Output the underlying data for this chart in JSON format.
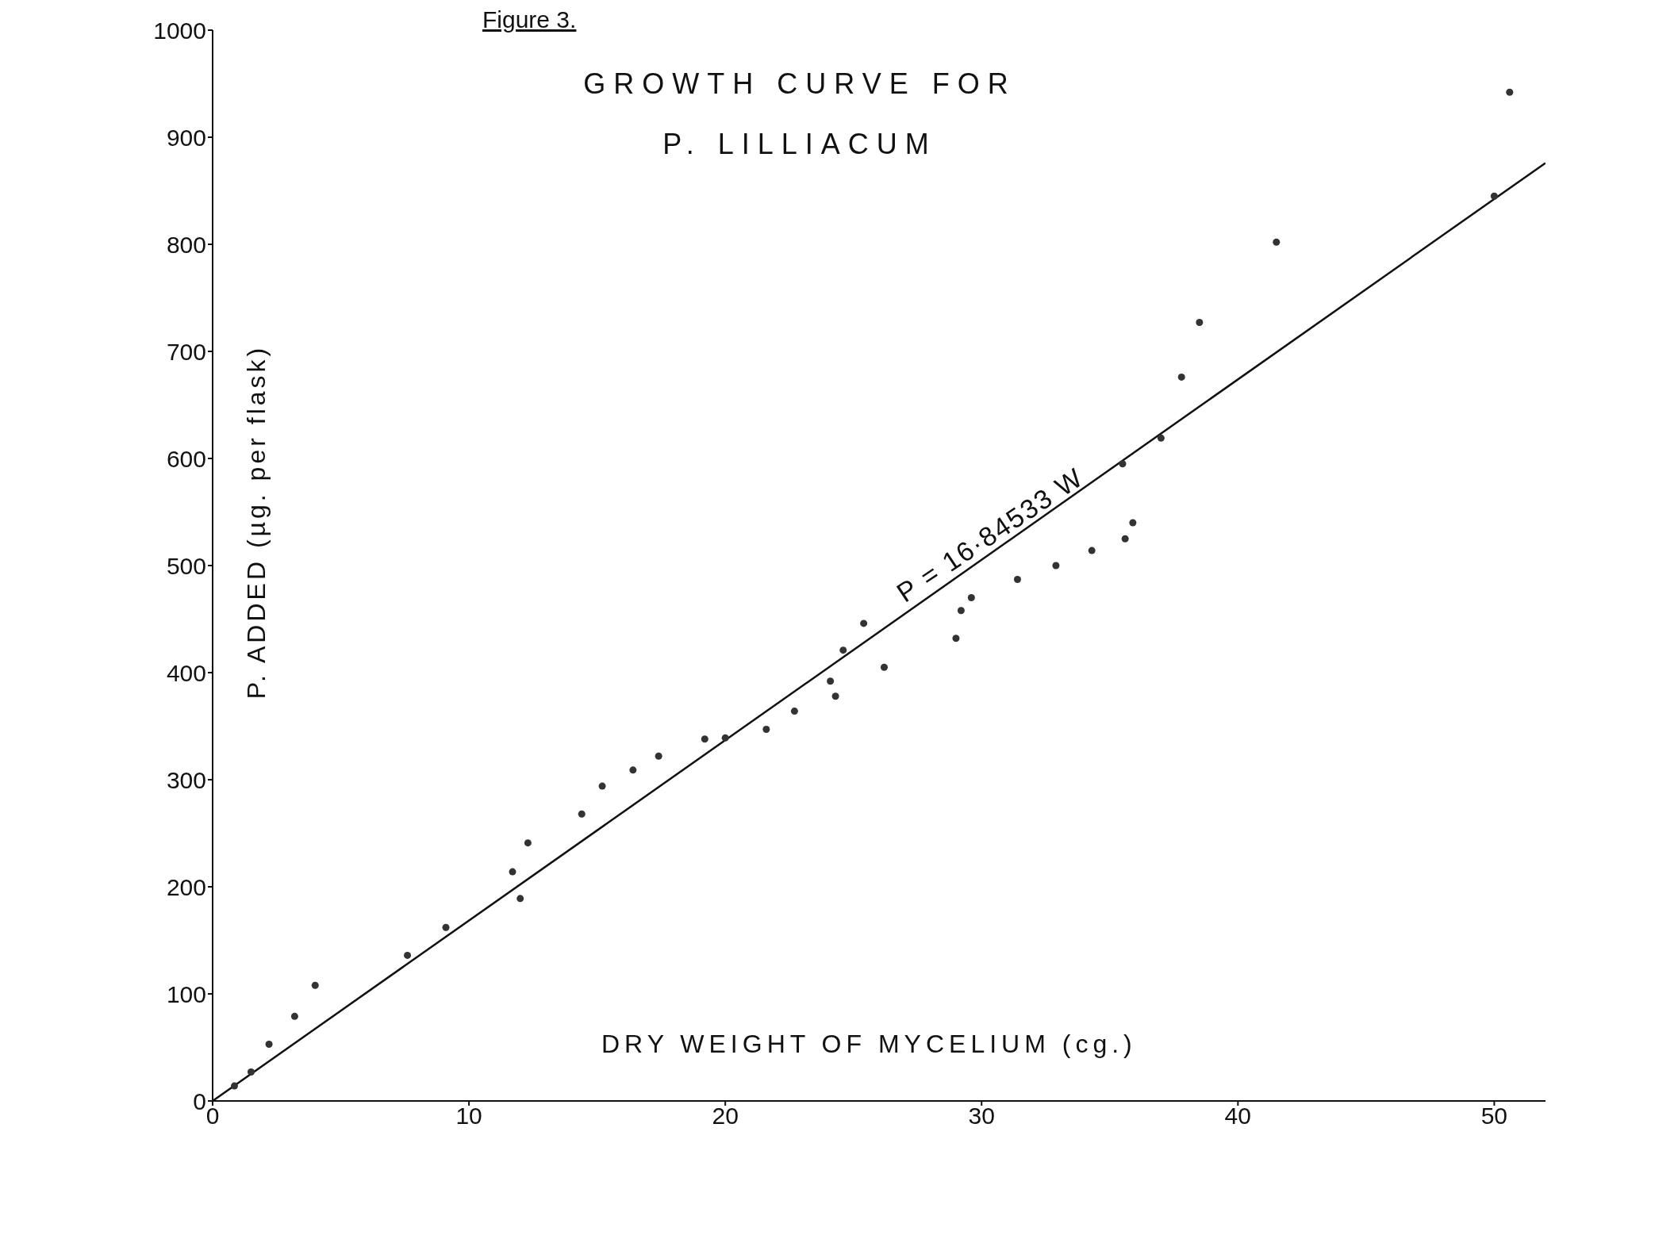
{
  "chart_data": {
    "type": "scatter",
    "title": "GROWTH CURVE FOR\nP. LILLIACUM",
    "xlabel": "DRY WEIGHT OF MYCELIUM (cg.)",
    "ylabel": "P. ADDED (µg. per flask)",
    "annotations": [
      "Figure 3.",
      "P = 16·84533 W"
    ],
    "xlim": [
      0,
      52
    ],
    "xticks": [
      0,
      10,
      20,
      30,
      40,
      50
    ],
    "ylim": [
      0,
      1000
    ],
    "yticks": [
      0,
      100,
      200,
      300,
      400,
      500,
      600,
      700,
      800,
      900,
      1000
    ],
    "marker": "circle",
    "series": [
      {
        "color": "#333333",
        "x": [
          0.85,
          1.5,
          2.2,
          3.2,
          4.0,
          7.6,
          9.1,
          11.7,
          12.0,
          12.3,
          14.4,
          15.2,
          16.4,
          17.4,
          19.2,
          20.0,
          21.6,
          22.7,
          24.1,
          24.3,
          24.6,
          25.4,
          26.2,
          29.0,
          29.2,
          29.6,
          31.4,
          32.9,
          34.3,
          35.5,
          35.6,
          35.9,
          37.0,
          37.8,
          38.5,
          41.5,
          50.0,
          50.6
        ],
        "values": [
          14,
          27,
          53,
          79,
          108,
          136,
          162,
          214,
          189,
          241,
          268,
          294,
          309,
          322,
          338,
          339,
          347,
          364,
          392,
          378,
          421,
          446,
          405,
          432,
          458,
          470,
          487,
          500,
          514,
          595,
          525,
          540,
          619,
          676,
          727,
          802,
          845,
          942
        ]
      },
      {
        "type": "line",
        "color": "#111111",
        "line_style": "solid",
        "marker": "none",
        "x": [
          0,
          52
        ],
        "values": [
          0,
          876
        ]
      }
    ]
  }
}
